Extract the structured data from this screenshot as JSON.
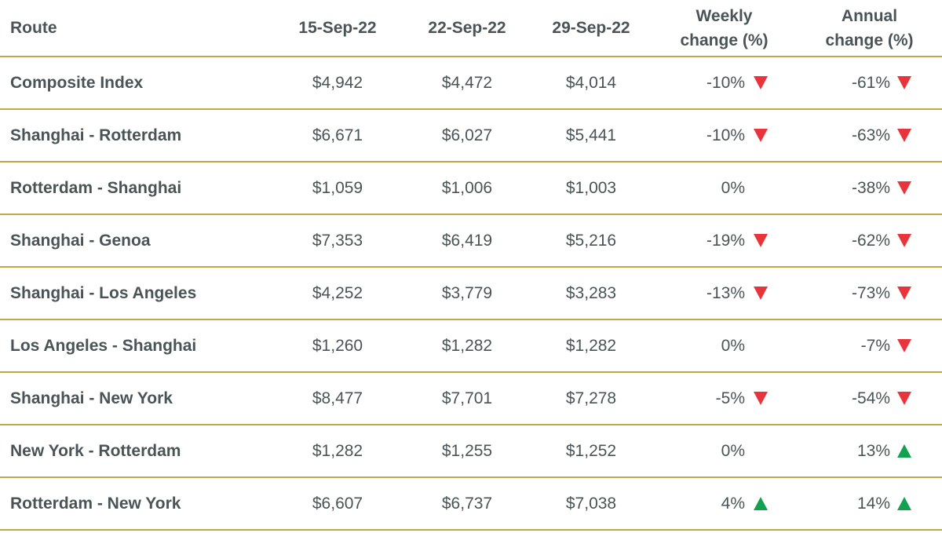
{
  "chart_data": {
    "type": "table",
    "columns": [
      "Route",
      "15-Sep-22",
      "22-Sep-22",
      "29-Sep-22",
      "Weekly change (%)",
      "Annual change (%)"
    ],
    "header": {
      "route": "Route",
      "date1": "15-Sep-22",
      "date2": "22-Sep-22",
      "date3": "29-Sep-22",
      "weekly_line1": "Weekly",
      "weekly_line2": "change (%)",
      "annual_line1": "Annual",
      "annual_line2": "change (%)"
    },
    "rows": [
      {
        "route": "Composite Index",
        "d1": "$4,942",
        "d2": "$4,472",
        "d3": "$4,014",
        "weekly": "-10%",
        "weekly_dir": "down",
        "annual": "-61%",
        "annual_dir": "down"
      },
      {
        "route": "Shanghai - Rotterdam",
        "d1": "$6,671",
        "d2": "$6,027",
        "d3": "$5,441",
        "weekly": "-10%",
        "weekly_dir": "down",
        "annual": "-63%",
        "annual_dir": "down"
      },
      {
        "route": "Rotterdam - Shanghai",
        "d1": "$1,059",
        "d2": "$1,006",
        "d3": "$1,003",
        "weekly": "0%",
        "weekly_dir": "none",
        "annual": "-38%",
        "annual_dir": "down"
      },
      {
        "route": "Shanghai - Genoa",
        "d1": "$7,353",
        "d2": "$6,419",
        "d3": "$5,216",
        "weekly": "-19%",
        "weekly_dir": "down",
        "annual": "-62%",
        "annual_dir": "down"
      },
      {
        "route": "Shanghai - Los Angeles",
        "d1": "$4,252",
        "d2": "$3,779",
        "d3": "$3,283",
        "weekly": "-13%",
        "weekly_dir": "down",
        "annual": "-73%",
        "annual_dir": "down"
      },
      {
        "route": "Los Angeles - Shanghai",
        "d1": "$1,260",
        "d2": "$1,282",
        "d3": "$1,282",
        "weekly": "0%",
        "weekly_dir": "none",
        "annual": "-7%",
        "annual_dir": "down"
      },
      {
        "route": "Shanghai - New York",
        "d1": "$8,477",
        "d2": "$7,701",
        "d3": "$7,278",
        "weekly": "-5%",
        "weekly_dir": "down",
        "annual": "-54%",
        "annual_dir": "down"
      },
      {
        "route": "New York - Rotterdam",
        "d1": "$1,282",
        "d2": "$1,255",
        "d3": "$1,252",
        "weekly": "0%",
        "weekly_dir": "none",
        "annual": "13%",
        "annual_dir": "up"
      },
      {
        "route": "Rotterdam - New York",
        "d1": "$6,607",
        "d2": "$6,737",
        "d3": "$7,038",
        "weekly": "4%",
        "weekly_dir": "up",
        "annual": "14%",
        "annual_dir": "up"
      }
    ]
  },
  "colors": {
    "text": "#4a5457",
    "rule": "#c4a64a",
    "down_arrow": "#e8343a",
    "up_arrow": "#12a150"
  }
}
